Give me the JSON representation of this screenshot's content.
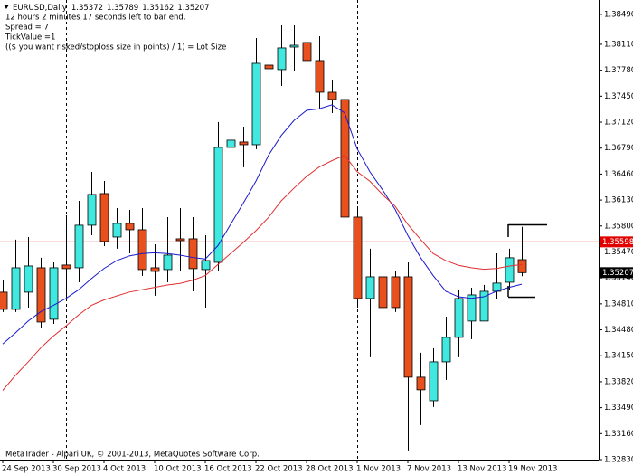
{
  "chart_data": {
    "type": "candlestick",
    "symbol": "EURUSD,Daily",
    "info_lines": [
      "12 hours 2 minutes 17 seconds left to bar end.",
      "Spread = 7",
      "TickValue =1",
      "(($ you want risked/stoploss size in points) / 1) = Lot Size"
    ],
    "footer": "MetaTrader - Alpari UK, © 2001-2013, MetaQuotes Software Corp.",
    "categories": [
      "24 Sep 2013",
      null,
      null,
      null,
      "30 Sep 2013",
      null,
      null,
      null,
      "4 Oct 2013",
      null,
      null,
      null,
      "10 Oct 2013",
      null,
      null,
      null,
      "16 Oct 2013",
      null,
      null,
      null,
      "22 Oct 2013",
      null,
      null,
      null,
      "28 Oct 2013",
      null,
      null,
      null,
      "1 Nov 2013",
      null,
      null,
      null,
      "7 Nov 2013",
      null,
      null,
      null,
      "13 Nov 2013",
      null,
      null,
      null,
      "19 Nov 2013",
      null
    ],
    "candles": {
      "open": [
        1.34959,
        1.3474,
        1.34959,
        1.35269,
        1.34614,
        1.35304,
        1.35269,
        1.3581,
        1.36212,
        1.3566,
        1.35833,
        1.35752,
        1.35269,
        1.35246,
        1.35637,
        1.35637,
        1.35246,
        1.35338,
        1.36799,
        1.36868,
        1.36833,
        1.37845,
        1.37788,
        1.38075,
        1.38133,
        1.37903,
        1.375,
        1.37408,
        1.35913,
        1.34878,
        1.35154,
        1.35154,
        1.35154,
        1.33878,
        1.33578,
        1.34073,
        1.34384,
        1.34591,
        1.34591,
        1.3497,
        1.35085,
        1.35372
      ],
      "high": [
        1.35108,
        1.35626,
        1.3566,
        1.35396,
        1.35338,
        1.35936,
        1.3612,
        1.36488,
        1.36373,
        1.36028,
        1.36005,
        1.36028,
        1.35568,
        1.35913,
        1.36028,
        1.35913,
        1.35683,
        1.37121,
        1.37086,
        1.37063,
        1.3819,
        1.38098,
        1.38351,
        1.38351,
        1.38236,
        1.38213,
        1.37661,
        1.37466,
        1.36051,
        1.35511,
        1.35269,
        1.35223,
        1.35338,
        1.34188,
        1.34246,
        1.34648,
        1.34993,
        1.35016,
        1.35051,
        1.35453,
        1.35511,
        1.35789
      ],
      "low": [
        1.34706,
        1.34706,
        1.34763,
        1.3451,
        1.34556,
        1.34878,
        1.35085,
        1.35683,
        1.35545,
        1.35511,
        1.35453,
        1.35166,
        1.34913,
        1.35085,
        1.35223,
        1.3497,
        1.34763,
        1.35223,
        1.36661,
        1.36546,
        1.36776,
        1.37696,
        1.37581,
        1.37776,
        1.37776,
        1.37293,
        1.37235,
        1.35798,
        1.34763,
        1.34131,
        1.34706,
        1.34706,
        1.32946,
        1.33268,
        1.33498,
        1.33843,
        1.34131,
        1.34361,
        1.34591,
        1.34878,
        1.34993,
        1.35162
      ],
      "close": [
        1.3474,
        1.35269,
        1.35292,
        1.34579,
        1.35269,
        1.35258,
        1.3581,
        1.36201,
        1.35603,
        1.35833,
        1.35752,
        1.35246,
        1.35223,
        1.3543,
        1.35614,
        1.35258,
        1.35361,
        1.36799,
        1.36891,
        1.36833,
        1.37868,
        1.37799,
        1.38064,
        1.38098,
        1.37903,
        1.375,
        1.37408,
        1.35913,
        1.34878,
        1.35154,
        1.34763,
        1.34763,
        1.33878,
        1.33717,
        1.34073,
        1.34384,
        1.34878,
        1.34924,
        1.3497,
        1.35074,
        1.35396,
        1.35207
      ]
    },
    "bull_color": "#40e8e0",
    "bear_color": "#e8501e",
    "lines": [
      {
        "color": "#1a1acc",
        "values": [
          1.343,
          1.3444,
          1.3459,
          1.3471,
          1.3479,
          1.3488,
          1.3499,
          1.3513,
          1.3526,
          1.3536,
          1.3542,
          1.3545,
          1.3546,
          1.3545,
          1.3543,
          1.354,
          1.3538,
          1.3555,
          1.3582,
          1.3609,
          1.3637,
          1.367,
          1.3695,
          1.3714,
          1.3727,
          1.3729,
          1.3734,
          1.3724,
          1.3678,
          1.3649,
          1.3626,
          1.3601,
          1.3568,
          1.354,
          1.3517,
          1.3497,
          1.349,
          1.3488,
          1.349,
          1.3497,
          1.3502,
          1.3506
        ]
      },
      {
        "color": "#e03030",
        "values": [
          1.3371,
          1.339,
          1.3407,
          1.3425,
          1.344,
          1.3453,
          1.3467,
          1.3479,
          1.3486,
          1.3491,
          1.3496,
          1.3499,
          1.3502,
          1.3505,
          1.3507,
          1.3511,
          1.3517,
          1.3531,
          1.3545,
          1.3559,
          1.3574,
          1.3591,
          1.3612,
          1.3628,
          1.3643,
          1.3655,
          1.3663,
          1.367,
          1.3649,
          1.3637,
          1.362,
          1.3605,
          1.3582,
          1.3563,
          1.3545,
          1.3536,
          1.353,
          1.3527,
          1.3525,
          1.3526,
          1.3529,
          1.3531
        ]
      }
    ],
    "price_line": {
      "value": 1.35598,
      "color": "#e00000"
    },
    "ylim": [
      1.3283,
      1.38673
    ],
    "yticks": [
      {
        "value": 1.3283,
        "label": "1.32830"
      },
      {
        "value": 1.3316,
        "label": "1.33160"
      },
      {
        "value": 1.3349,
        "label": "1.33490"
      },
      {
        "value": 1.3382,
        "label": "1.33820"
      },
      {
        "value": 1.3415,
        "label": "1.34150"
      },
      {
        "value": 1.3448,
        "label": "1.34480"
      },
      {
        "value": 1.3481,
        "label": "1.34810"
      },
      {
        "value": 1.3514,
        "label": "1.35140"
      },
      {
        "value": 1.3547,
        "label": "1.35470"
      },
      {
        "value": 1.358,
        "label": "1.35800"
      },
      {
        "value": 1.3613,
        "label": "1.36130"
      },
      {
        "value": 1.3646,
        "label": "1.36460"
      },
      {
        "value": 1.3679,
        "label": "1.36790"
      },
      {
        "value": 1.3712,
        "label": "1.37120"
      },
      {
        "value": 1.3745,
        "label": "1.37450"
      },
      {
        "value": 1.3778,
        "label": "1.37780"
      },
      {
        "value": 1.3811,
        "label": "1.38110"
      },
      {
        "value": 1.3849,
        "label": "1.38490"
      }
    ]
  }
}
